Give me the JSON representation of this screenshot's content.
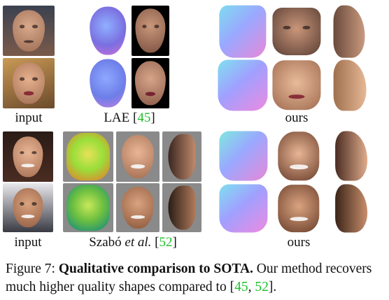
{
  "labels": {
    "top_input": "input",
    "top_lae_name": "LAE [",
    "top_lae_ref": "45",
    "top_lae_close": "]",
    "top_ours": "ours",
    "bot_input": "input",
    "bot_szabo_name": "Szabó ",
    "bot_szabo_etal": "et al.",
    "bot_szabo_open": " [",
    "bot_szabo_ref": "52",
    "bot_szabo_close": "]",
    "bot_ours": "ours"
  },
  "caption": {
    "figure": "Figure 7: ",
    "bold": "Qualitative comparison to SOTA.",
    "text1": " Our method recovers much higher quality shapes compared to [",
    "ref1": "45",
    "sep": ", ",
    "ref2": "52",
    "text2": "]."
  },
  "colors": {
    "citation": "#1fbf2a",
    "normal_map_a": "#7a8cf0",
    "normal_map_b": "#e07ad8",
    "normal_map_c": "#5fd3e6",
    "depth_map_a": "#9adf3a",
    "depth_map_b": "#e0b030",
    "backdrop_gray": "#8a8a8a"
  },
  "icons": {
    "photo": "face-photo",
    "normal": "normal-map-render",
    "depth": "depth-map-render",
    "profile": "side-view-render"
  }
}
